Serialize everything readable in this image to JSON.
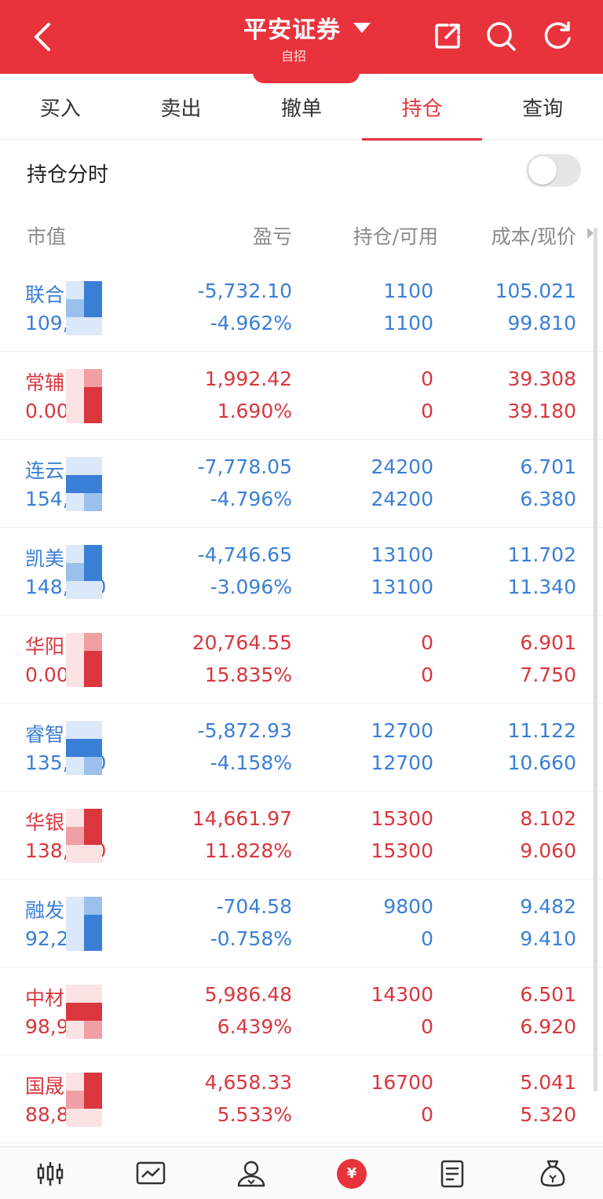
{
  "header": {
    "title": "平安证券",
    "subtitle": "自招"
  },
  "tabs": [
    "买入",
    "卖出",
    "撤单",
    "持仓",
    "查询"
  ],
  "active_tab": "持仓",
  "toggle": {
    "label": "持仓分时",
    "on": false
  },
  "columns": {
    "market_value": "市值",
    "pnl": "盈亏",
    "position": "持仓/可用",
    "cost_price": "成本/现价"
  },
  "rows": [
    {
      "name": "联合  学",
      "market_value": "109,  00",
      "pnl": "-5,732.10",
      "pnl_pct": "-4.962%",
      "position": "1100",
      "available": "1100",
      "cost": "105.021",
      "price": "99.810",
      "color": "blue"
    },
    {
      "name": "常辅  份",
      "market_value": "0.00",
      "pnl": "1,992.42",
      "pnl_pct": "1.690%",
      "position": "0",
      "available": "0",
      "cost": "39.308",
      "price": "39.180",
      "color": "red"
    },
    {
      "name": "连云",
      "market_value": "154,3  0",
      "pnl": "-7,778.05",
      "pnl_pct": "-4.796%",
      "position": "24200",
      "available": "24200",
      "cost": "6.701",
      "price": "6.380",
      "color": "blue"
    },
    {
      "name": "凯美  气",
      "market_value": "148,  .00",
      "pnl": "-4,746.65",
      "pnl_pct": "-3.096%",
      "position": "13100",
      "available": "13100",
      "cost": "11.702",
      "price": "11.340",
      "color": "blue"
    },
    {
      "name": "华阳  材",
      "market_value": "0.00",
      "pnl": "20,764.55",
      "pnl_pct": "15.835%",
      "position": "0",
      "available": "0",
      "cost": "6.901",
      "price": "7.750",
      "color": "red"
    },
    {
      "name": "睿智  药",
      "market_value": "135,  .00",
      "pnl": "-5,872.93",
      "pnl_pct": "-4.158%",
      "position": "12700",
      "available": "12700",
      "cost": "11.122",
      "price": "10.660",
      "color": "blue"
    },
    {
      "name": "华银  力",
      "market_value": "138,  .00",
      "pnl": "14,661.97",
      "pnl_pct": "11.828%",
      "position": "15300",
      "available": "15300",
      "cost": "8.102",
      "price": "9.060",
      "color": "red"
    },
    {
      "name": "融发  电",
      "market_value": "92,2  0",
      "pnl": "-704.58",
      "pnl_pct": "-0.758%",
      "position": "9800",
      "available": "0",
      "cost": "9.482",
      "price": "9.410",
      "color": "blue"
    },
    {
      "name": "中材  能",
      "market_value": "98,95  0",
      "pnl": "5,986.48",
      "pnl_pct": "6.439%",
      "position": "14300",
      "available": "0",
      "cost": "6.501",
      "price": "6.920",
      "color": "red"
    },
    {
      "name": "国晟  技",
      "market_value": "88,84  )",
      "pnl": "4,658.33",
      "pnl_pct": "5.533%",
      "position": "16700",
      "available": "0",
      "cost": "5.041",
      "price": "5.320",
      "color": "red"
    }
  ],
  "bottom_nav": [
    "market-icon",
    "chart-icon",
    "account-icon",
    "trade-icon",
    "news-icon",
    "wealth-icon"
  ],
  "colors": {
    "brand": "#e8333c",
    "up": "#d9363e",
    "down": "#3a7fd6"
  }
}
